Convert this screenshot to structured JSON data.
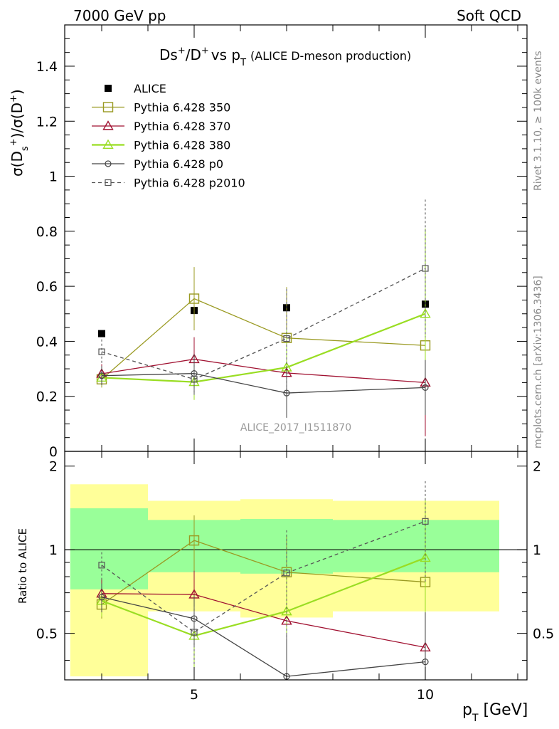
{
  "header": {
    "left": "7000 GeV pp",
    "right": "Soft QCD"
  },
  "side_labels": {
    "rivet": "Rivet 3.1.10, ≥ 100k events",
    "mcplots": "mcplots.cern.ch [arXiv:1306.3436]"
  },
  "chart_data": [
    {
      "type": "scatter",
      "title": "Ds⁺/D⁺ vs p_T (ALICE D-meson production)",
      "title_main": "Ds",
      "title_vs": "/D",
      "title_pt": "vs p",
      "title_sub": "(ALICE D-meson production)",
      "ylabel": "σ(Dₛ⁺)/σ(D⁺)",
      "xlabel": "p_T [GeV]",
      "analysis_tag": "ALICE_2017_I1511870",
      "xlim": [
        2.2,
        12.2
      ],
      "ylim": [
        0,
        1.55
      ],
      "yticks": [
        "0",
        "0.2",
        "0.4",
        "0.6",
        "0.8",
        "1",
        "1.2",
        "1.4"
      ],
      "x": [
        3,
        5,
        7,
        10
      ],
      "series": [
        {
          "name": "ALICE",
          "color": "#000000",
          "marker": "filled-square",
          "line": "none",
          "values": [
            0.428,
            0.512,
            0.522,
            0.535
          ]
        },
        {
          "name": "Pythia 6.428 350",
          "color": "#9a9a22",
          "marker": "open-square",
          "line": "solid",
          "values": [
            0.262,
            0.555,
            0.412,
            0.385
          ],
          "err": [
            0.03,
            0.115,
            0.185,
            0.155
          ]
        },
        {
          "name": "Pythia 6.428 370",
          "color": "#a01030",
          "marker": "open-triangle",
          "line": "solid",
          "values": [
            0.282,
            0.335,
            0.285,
            0.25
          ],
          "err": [
            0.035,
            0.08,
            0.12,
            0.195
          ]
        },
        {
          "name": "Pythia 6.428 380",
          "color": "#99dd22",
          "marker": "open-triangle",
          "line": "solid",
          "values": [
            0.268,
            0.252,
            0.305,
            0.5
          ],
          "err": [
            0.03,
            0.065,
            0.14,
            0.31
          ]
        },
        {
          "name": "Pythia 6.428 p0",
          "color": "#444444",
          "marker": "open-circle",
          "line": "solid",
          "values": [
            0.275,
            0.283,
            0.212,
            0.232
          ],
          "err": [
            0.035,
            0.07,
            0.09,
            0.1
          ]
        },
        {
          "name": "Pythia 6.428 p2010",
          "color": "#555555",
          "marker": "open-square-small",
          "line": "dashed",
          "values": [
            0.362,
            0.262,
            0.41,
            0.665
          ],
          "err": [
            0.045,
            0.06,
            0.18,
            0.25
          ]
        }
      ]
    },
    {
      "type": "scatter",
      "ylabel": "Ratio to ALICE",
      "xlabel": "p_T [GeV]",
      "xlim": [
        2.2,
        12.2
      ],
      "ylim": [
        0.34,
        2.26
      ],
      "yticks": [
        "0.5",
        "1",
        "2"
      ],
      "xticks": [
        "5",
        "10"
      ],
      "bands": {
        "bins": [
          [
            2.2,
            4.0
          ],
          [
            4.0,
            6.0
          ],
          [
            6.0,
            8.0
          ],
          [
            8.0,
            12.0
          ]
        ],
        "yellow": [
          [
            0.35,
            1.72
          ],
          [
            0.6,
            1.5
          ],
          [
            0.57,
            1.52
          ],
          [
            0.6,
            1.5
          ]
        ],
        "green": [
          [
            0.72,
            1.41
          ],
          [
            0.83,
            1.28
          ],
          [
            0.82,
            1.29
          ],
          [
            0.83,
            1.28
          ]
        ],
        "yellow_color": "#ffff99",
        "green_color": "#99ff99"
      },
      "x": [
        3,
        5,
        7,
        10
      ],
      "series": [
        {
          "name": "Pythia 6.428 350",
          "color": "#9a9a22",
          "marker": "open-square",
          "line": "solid",
          "values": [
            0.635,
            1.08,
            0.83,
            0.765
          ],
          "err": [
            0.07,
            0.25,
            0.3,
            0.3
          ]
        },
        {
          "name": "Pythia 6.428 370",
          "color": "#a01030",
          "marker": "open-triangle",
          "line": "solid",
          "values": [
            0.695,
            0.69,
            0.555,
            0.445
          ],
          "err": [
            0.09,
            0.15,
            0.2,
            0.3
          ]
        },
        {
          "name": "Pythia 6.428 380",
          "color": "#99dd22",
          "marker": "open-triangle",
          "line": "solid",
          "values": [
            0.655,
            0.49,
            0.6,
            0.935
          ],
          "err": [
            0.08,
            0.13,
            0.28,
            0.6
          ]
        },
        {
          "name": "Pythia 6.428 p0",
          "color": "#444444",
          "marker": "open-circle",
          "line": "solid",
          "values": [
            0.675,
            0.565,
            0.35,
            0.395
          ],
          "err": [
            0.08,
            0.12,
            0.15,
            0.2
          ]
        },
        {
          "name": "Pythia 6.428 p2010",
          "color": "#555555",
          "marker": "open-square-small",
          "line": "dashed",
          "values": [
            0.88,
            0.505,
            0.825,
            1.265
          ],
          "err": [
            0.1,
            0.12,
            0.35,
            0.5
          ]
        }
      ]
    }
  ]
}
